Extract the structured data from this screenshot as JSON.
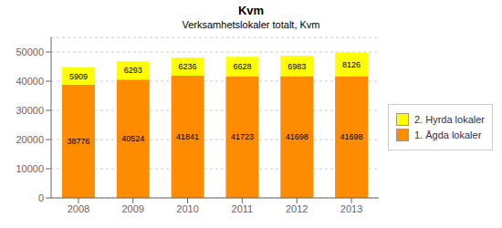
{
  "chart_data": {
    "type": "bar",
    "title": "Kvm",
    "subtitle": "Verksamhetslokaler totalt, Kvm",
    "categories": [
      "2008",
      "2009",
      "2010",
      "2011",
      "2012",
      "2013"
    ],
    "series": [
      {
        "name": "1. Ägda lokaler",
        "color": "#FF8C00",
        "values": [
          38776,
          40524,
          41841,
          41723,
          41698,
          41698
        ]
      },
      {
        "name": "2. Hyrda lokaler",
        "color": "#FFFF00",
        "values": [
          5909,
          6293,
          6236,
          6628,
          6983,
          8126
        ]
      }
    ],
    "ylim": [
      0,
      55000
    ],
    "yticks": [
      0,
      10000,
      20000,
      30000,
      40000,
      50000
    ],
    "stacked": true,
    "grid": true,
    "legend": "right",
    "data_labels": true
  }
}
